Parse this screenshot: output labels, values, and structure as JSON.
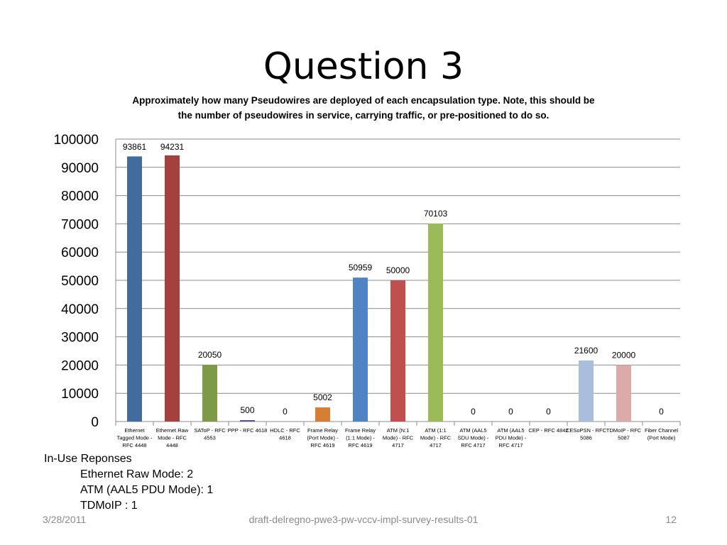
{
  "slide": {
    "title": "Question 3",
    "subtitle_line1": "Approximately how many Pseudowires are deployed of each encapsulation type. Note, this should be",
    "subtitle_line2": "the number of pseudowires in service, carrying traffic, or pre-positioned to do so."
  },
  "chart_data": {
    "type": "bar",
    "title": "",
    "xlabel": "",
    "ylabel": "",
    "ylim": [
      0,
      100000
    ],
    "yticks": [
      0,
      10000,
      20000,
      30000,
      40000,
      50000,
      60000,
      70000,
      80000,
      90000,
      100000
    ],
    "grid": true,
    "legend": "none",
    "categories": [
      [
        "Ethernet",
        "Tagged Mode -",
        "RFC 4448"
      ],
      [
        "Ethernet Raw",
        "Mode - RFC",
        "4448"
      ],
      [
        "SAToP - RFC",
        "4553"
      ],
      [
        "PPP - RFC 4618"
      ],
      [
        "HDLC - RFC",
        "4618"
      ],
      [
        "Frame Relay",
        "(Port Mode) -",
        "RFC 4619"
      ],
      [
        "Frame Relay",
        "(1:1 Mode) -",
        "RFC 4619"
      ],
      [
        "ATM (N:1",
        "Mode) - RFC",
        "4717"
      ],
      [
        "ATM (1:1",
        "Mode) - RFC",
        "4717"
      ],
      [
        "ATM (AAL5",
        "SDU Mode) -",
        "RFC 4717"
      ],
      [
        "ATM (AAL5",
        "PDU Mode) -",
        "RFC 4717"
      ],
      [
        "CEP - RFC 4842"
      ],
      [
        "CESoPSN - RFC",
        "5086"
      ],
      [
        "TDMoIP - RFC",
        "5087"
      ],
      [
        "Fiber Channel",
        "(Port Mode)"
      ]
    ],
    "values": [
      93861,
      94231,
      20050,
      500,
      0,
      5002,
      50959,
      50000,
      70103,
      0,
      0,
      0,
      21600,
      20000,
      0
    ],
    "colors": [
      "#426b9e",
      "#a4403e",
      "#7d9a48",
      "#67518a",
      "#3aa3bd",
      "#d67d36",
      "#4e84c4",
      "#c0504d",
      "#9bbb59",
      "#8064a2",
      "#4bacc6",
      "#f79646",
      "#a9bddd",
      "#dbaaa9",
      "#c5d7a2"
    ]
  },
  "notes": {
    "heading": "In-Use Reponses",
    "items": [
      "Ethernet Raw Mode:  2",
      "ATM (AAL5 PDU Mode):  1",
      "TDMoIP :  1"
    ]
  },
  "footer": {
    "date": "3/28/2011",
    "doc": "draft-delregno-pwe3-pw-vccv-impl-survey-results-01",
    "page": "12"
  }
}
